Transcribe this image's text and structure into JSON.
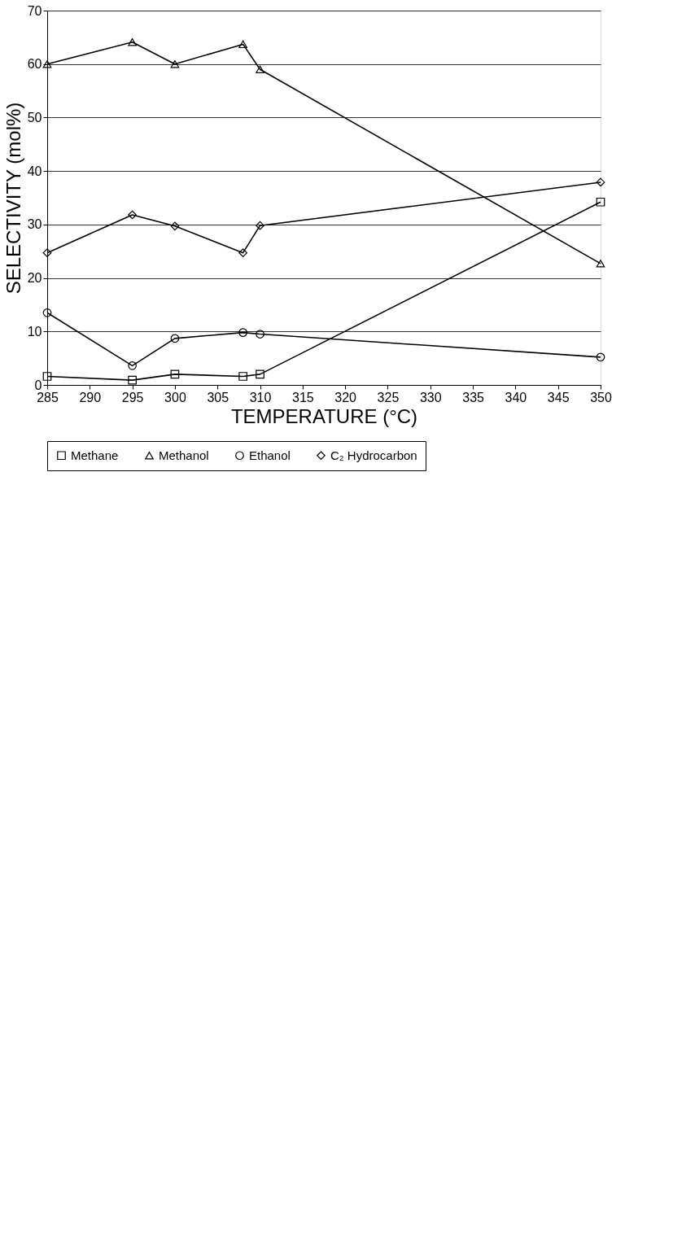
{
  "chart_data": {
    "type": "line",
    "xlabel": "TEMPERATURE (°C)",
    "ylabel": "SELECTIVITY (mol%)",
    "x": [
      285,
      295,
      300,
      308,
      310,
      350
    ],
    "series": [
      {
        "name": "Methane",
        "color": "#000000",
        "marker": "square",
        "values": [
          1.6,
          0.9,
          2,
          1.6,
          2,
          34.2
        ]
      },
      {
        "name": "Methanol",
        "color": "#000000",
        "marker": "triangle",
        "values": [
          60,
          64.1,
          60,
          63.7,
          59,
          22.7
        ]
      },
      {
        "name": "Ethanol",
        "color": "#000000",
        "marker": "circle",
        "values": [
          13.5,
          3.6,
          8.7,
          9.8,
          9.5,
          5.2
        ]
      },
      {
        "name": "C₂ Hydrocarbon",
        "color": "#000000",
        "marker": "diamond",
        "values": [
          24.7,
          31.8,
          29.7,
          24.7,
          29.8,
          37.9
        ]
      }
    ],
    "xlim": [
      285,
      350
    ],
    "xticks": [
      285,
      290,
      295,
      300,
      305,
      310,
      315,
      320,
      325,
      330,
      335,
      340,
      345,
      350
    ],
    "ylim": [
      0,
      70
    ],
    "yticks": [
      0,
      10,
      20,
      30,
      40,
      50,
      60,
      70
    ],
    "grid": "y",
    "legend": "bottom",
    "line_style": "solid"
  }
}
